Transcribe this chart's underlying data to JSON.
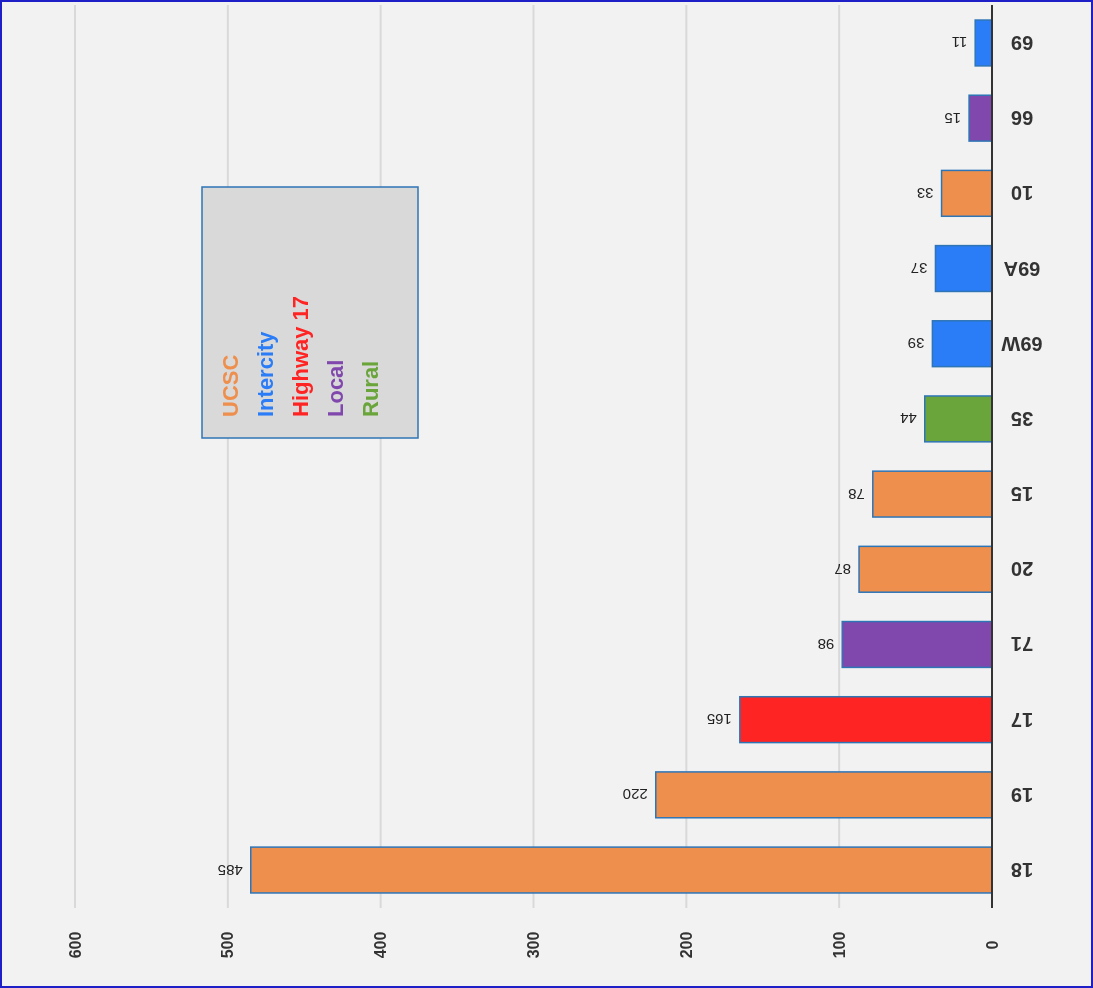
{
  "chart_data": {
    "type": "bar",
    "orientation": "horizontal",
    "categories": [
      "69",
      "66",
      "10",
      "69A",
      "69W",
      "35",
      "15",
      "20",
      "71",
      "17",
      "19",
      "18"
    ],
    "series": [
      {
        "name": "UCSC",
        "color": "#ee8f4e",
        "values": [
          null,
          null,
          33,
          null,
          null,
          null,
          78,
          87,
          null,
          null,
          220,
          485
        ]
      },
      {
        "name": "Intercity",
        "color": "#2b7cf7",
        "values": [
          11,
          null,
          null,
          37,
          39,
          null,
          null,
          null,
          null,
          null,
          null,
          null
        ]
      },
      {
        "name": "Highway 17",
        "color": "#ff2424",
        "values": [
          null,
          null,
          null,
          null,
          null,
          null,
          null,
          null,
          null,
          165,
          null,
          null
        ]
      },
      {
        "name": "Local",
        "color": "#8048ac",
        "values": [
          null,
          15,
          null,
          null,
          null,
          null,
          null,
          null,
          98,
          null,
          null,
          null
        ]
      },
      {
        "name": "Rural",
        "color": "#6aa53c",
        "values": [
          null,
          null,
          null,
          null,
          null,
          44,
          null,
          null,
          null,
          null,
          null,
          null
        ]
      }
    ],
    "xlim": [
      600,
      0
    ],
    "xticks": [
      600,
      500,
      400,
      300,
      200,
      100,
      0
    ],
    "grid": "x",
    "data_labels": true,
    "legend": "top left"
  }
}
